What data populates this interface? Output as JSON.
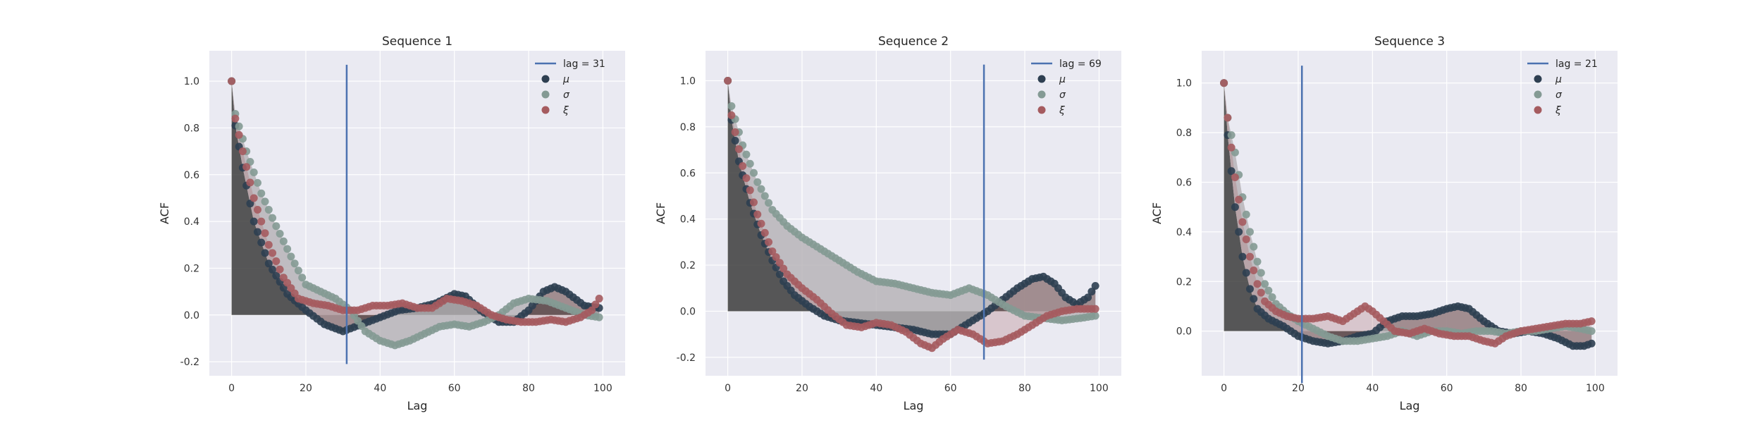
{
  "chart_data": [
    {
      "type": "scatter",
      "title": "Sequence 1",
      "xlabel": "Lag",
      "ylabel": "ACF",
      "xlim": [
        -6,
        106
      ],
      "ylim": [
        -0.26,
        1.13
      ],
      "xticks": [
        0,
        20,
        40,
        60,
        80,
        100
      ],
      "yticks": [
        -0.2,
        0.0,
        0.2,
        0.4,
        0.6,
        0.8,
        1.0
      ],
      "grid": true,
      "legend_position": "top-right",
      "vline": {
        "x": 31,
        "label": "lag = 31",
        "color": "#4c72b0"
      },
      "series": [
        {
          "name": "μ",
          "color": "#2e3f51",
          "knots": [
            [
              0,
              1.0
            ],
            [
              1,
              0.81
            ],
            [
              3,
              0.63
            ],
            [
              6,
              0.4
            ],
            [
              10,
              0.22
            ],
            [
              15,
              0.09
            ],
            [
              20,
              0.02
            ],
            [
              25,
              -0.04
            ],
            [
              30,
              -0.07
            ],
            [
              35,
              -0.04
            ],
            [
              40,
              -0.01
            ],
            [
              45,
              0.02
            ],
            [
              50,
              0.03
            ],
            [
              55,
              0.05
            ],
            [
              60,
              0.09
            ],
            [
              63,
              0.08
            ],
            [
              67,
              0.02
            ],
            [
              72,
              -0.03
            ],
            [
              76,
              -0.03
            ],
            [
              80,
              0.02
            ],
            [
              84,
              0.1
            ],
            [
              87,
              0.12
            ],
            [
              90,
              0.1
            ],
            [
              95,
              0.04
            ],
            [
              99,
              0.03
            ]
          ]
        },
        {
          "name": "σ",
          "color": "#849a94",
          "knots": [
            [
              0,
              1.0
            ],
            [
              1,
              0.86
            ],
            [
              4,
              0.7
            ],
            [
              8,
              0.52
            ],
            [
              12,
              0.38
            ],
            [
              16,
              0.25
            ],
            [
              20,
              0.13
            ],
            [
              24,
              0.1
            ],
            [
              28,
              0.07
            ],
            [
              32,
              0.02
            ],
            [
              36,
              -0.07
            ],
            [
              40,
              -0.11
            ],
            [
              44,
              -0.13
            ],
            [
              48,
              -0.11
            ],
            [
              52,
              -0.08
            ],
            [
              56,
              -0.05
            ],
            [
              60,
              -0.04
            ],
            [
              64,
              -0.05
            ],
            [
              68,
              -0.03
            ],
            [
              72,
              0.0
            ],
            [
              76,
              0.05
            ],
            [
              80,
              0.07
            ],
            [
              85,
              0.06
            ],
            [
              90,
              0.03
            ],
            [
              95,
              0.0
            ],
            [
              99,
              -0.01
            ]
          ]
        },
        {
          "name": "ξ",
          "color": "#a55b5f",
          "knots": [
            [
              0,
              1.0
            ],
            [
              1,
              0.84
            ],
            [
              3,
              0.7
            ],
            [
              6,
              0.5
            ],
            [
              10,
              0.3
            ],
            [
              14,
              0.16
            ],
            [
              18,
              0.07
            ],
            [
              22,
              0.05
            ],
            [
              26,
              0.04
            ],
            [
              30,
              0.02
            ],
            [
              34,
              0.02
            ],
            [
              38,
              0.04
            ],
            [
              42,
              0.04
            ],
            [
              46,
              0.05
            ],
            [
              50,
              0.03
            ],
            [
              54,
              0.03
            ],
            [
              58,
              0.07
            ],
            [
              62,
              0.06
            ],
            [
              66,
              0.04
            ],
            [
              70,
              0.0
            ],
            [
              74,
              -0.02
            ],
            [
              78,
              -0.03
            ],
            [
              82,
              -0.03
            ],
            [
              86,
              -0.02
            ],
            [
              90,
              -0.03
            ],
            [
              94,
              -0.01
            ],
            [
              97,
              0.02
            ],
            [
              99,
              0.07
            ]
          ]
        }
      ]
    },
    {
      "type": "scatter",
      "title": "Sequence 2",
      "xlabel": "Lag",
      "ylabel": "ACF",
      "xlim": [
        -6,
        106
      ],
      "ylim": [
        -0.28,
        1.13
      ],
      "xticks": [
        0,
        20,
        40,
        60,
        80,
        100
      ],
      "yticks": [
        -0.2,
        0.0,
        0.2,
        0.4,
        0.6,
        0.8,
        1.0
      ],
      "grid": true,
      "legend_position": "top-right",
      "vline": {
        "x": 69,
        "label": "lag = 69",
        "color": "#4c72b0"
      },
      "series": [
        {
          "name": "μ",
          "color": "#2e3f51",
          "knots": [
            [
              0,
              1.0
            ],
            [
              1,
              0.83
            ],
            [
              3,
              0.65
            ],
            [
              6,
              0.47
            ],
            [
              9,
              0.33
            ],
            [
              12,
              0.22
            ],
            [
              15,
              0.13
            ],
            [
              18,
              0.07
            ],
            [
              22,
              0.02
            ],
            [
              26,
              -0.02
            ],
            [
              30,
              -0.04
            ],
            [
              35,
              -0.05
            ],
            [
              40,
              -0.06
            ],
            [
              45,
              -0.07
            ],
            [
              50,
              -0.08
            ],
            [
              55,
              -0.1
            ],
            [
              60,
              -0.1
            ],
            [
              65,
              -0.05
            ],
            [
              70,
              0.0
            ],
            [
              74,
              0.05
            ],
            [
              78,
              0.1
            ],
            [
              82,
              0.14
            ],
            [
              85,
              0.15
            ],
            [
              88,
              0.12
            ],
            [
              91,
              0.06
            ],
            [
              94,
              0.03
            ],
            [
              97,
              0.06
            ],
            [
              99,
              0.11
            ]
          ]
        },
        {
          "name": "σ",
          "color": "#849a94",
          "knots": [
            [
              0,
              1.0
            ],
            [
              1,
              0.89
            ],
            [
              4,
              0.72
            ],
            [
              8,
              0.56
            ],
            [
              12,
              0.44
            ],
            [
              16,
              0.37
            ],
            [
              20,
              0.32
            ],
            [
              25,
              0.27
            ],
            [
              30,
              0.22
            ],
            [
              35,
              0.17
            ],
            [
              40,
              0.13
            ],
            [
              45,
              0.12
            ],
            [
              50,
              0.1
            ],
            [
              55,
              0.08
            ],
            [
              60,
              0.07
            ],
            [
              65,
              0.1
            ],
            [
              70,
              0.07
            ],
            [
              75,
              0.02
            ],
            [
              80,
              -0.02
            ],
            [
              85,
              -0.03
            ],
            [
              90,
              -0.04
            ],
            [
              95,
              -0.03
            ],
            [
              99,
              -0.02
            ]
          ]
        },
        {
          "name": "ξ",
          "color": "#a55b5f",
          "knots": [
            [
              0,
              1.0
            ],
            [
              1,
              0.85
            ],
            [
              4,
              0.63
            ],
            [
              8,
              0.42
            ],
            [
              12,
              0.26
            ],
            [
              16,
              0.16
            ],
            [
              20,
              0.1
            ],
            [
              24,
              0.05
            ],
            [
              28,
              -0.01
            ],
            [
              32,
              -0.06
            ],
            [
              36,
              -0.07
            ],
            [
              40,
              -0.05
            ],
            [
              44,
              -0.06
            ],
            [
              48,
              -0.09
            ],
            [
              52,
              -0.14
            ],
            [
              55,
              -0.16
            ],
            [
              58,
              -0.12
            ],
            [
              62,
              -0.08
            ],
            [
              66,
              -0.1
            ],
            [
              70,
              -0.14
            ],
            [
              74,
              -0.13
            ],
            [
              78,
              -0.1
            ],
            [
              82,
              -0.06
            ],
            [
              86,
              -0.02
            ],
            [
              90,
              0.0
            ],
            [
              94,
              0.01
            ],
            [
              99,
              0.01
            ]
          ]
        }
      ]
    },
    {
      "type": "scatter",
      "title": "Sequence 3",
      "xlabel": "Lag",
      "ylabel": "ACF",
      "xlim": [
        -6,
        106
      ],
      "ylim": [
        -0.18,
        1.13
      ],
      "xticks": [
        0,
        20,
        40,
        60,
        80,
        100
      ],
      "yticks": [
        0.0,
        0.2,
        0.4,
        0.6,
        0.8,
        1.0
      ],
      "grid": true,
      "legend_position": "top-right",
      "vline": {
        "x": 21,
        "label": "lag = 21",
        "color": "#4c72b0"
      },
      "series": [
        {
          "name": "μ",
          "color": "#2e3f51",
          "knots": [
            [
              0,
              1.0
            ],
            [
              1,
              0.79
            ],
            [
              3,
              0.5
            ],
            [
              5,
              0.3
            ],
            [
              7,
              0.17
            ],
            [
              9,
              0.09
            ],
            [
              12,
              0.05
            ],
            [
              16,
              0.02
            ],
            [
              20,
              -0.02
            ],
            [
              24,
              -0.04
            ],
            [
              28,
              -0.05
            ],
            [
              32,
              -0.04
            ],
            [
              36,
              -0.02
            ],
            [
              40,
              -0.01
            ],
            [
              44,
              0.04
            ],
            [
              48,
              0.06
            ],
            [
              52,
              0.06
            ],
            [
              56,
              0.07
            ],
            [
              60,
              0.09
            ],
            [
              63,
              0.1
            ],
            [
              66,
              0.09
            ],
            [
              70,
              0.04
            ],
            [
              74,
              0.0
            ],
            [
              78,
              -0.01
            ],
            [
              82,
              0.0
            ],
            [
              86,
              -0.01
            ],
            [
              90,
              -0.03
            ],
            [
              94,
              -0.06
            ],
            [
              97,
              -0.06
            ],
            [
              99,
              -0.05
            ]
          ]
        },
        {
          "name": "σ",
          "color": "#849a94",
          "knots": [
            [
              0,
              1.0
            ],
            [
              1,
              0.86
            ],
            [
              3,
              0.72
            ],
            [
              5,
              0.54
            ],
            [
              7,
              0.4
            ],
            [
              9,
              0.28
            ],
            [
              11,
              0.19
            ],
            [
              14,
              0.11
            ],
            [
              17,
              0.07
            ],
            [
              20,
              0.04
            ],
            [
              24,
              0.01
            ],
            [
              28,
              -0.02
            ],
            [
              32,
              -0.04
            ],
            [
              36,
              -0.04
            ],
            [
              40,
              -0.03
            ],
            [
              44,
              -0.02
            ],
            [
              48,
              0.0
            ],
            [
              52,
              -0.02
            ],
            [
              56,
              0.0
            ],
            [
              60,
              0.0
            ],
            [
              64,
              -0.01
            ],
            [
              68,
              0.0
            ],
            [
              72,
              0.0
            ],
            [
              76,
              -0.01
            ],
            [
              80,
              0.0
            ],
            [
              84,
              0.0
            ],
            [
              88,
              0.01
            ],
            [
              92,
              0.02
            ],
            [
              96,
              0.01
            ],
            [
              99,
              0.0
            ]
          ]
        },
        {
          "name": "ξ",
          "color": "#a55b5f",
          "knots": [
            [
              0,
              1.0
            ],
            [
              1,
              0.86
            ],
            [
              3,
              0.62
            ],
            [
              5,
              0.44
            ],
            [
              7,
              0.3
            ],
            [
              9,
              0.19
            ],
            [
              11,
              0.12
            ],
            [
              14,
              0.08
            ],
            [
              17,
              0.06
            ],
            [
              20,
              0.05
            ],
            [
              24,
              0.05
            ],
            [
              28,
              0.06
            ],
            [
              32,
              0.04
            ],
            [
              35,
              0.07
            ],
            [
              38,
              0.1
            ],
            [
              40,
              0.08
            ],
            [
              43,
              0.04
            ],
            [
              46,
              0.0
            ],
            [
              50,
              -0.01
            ],
            [
              54,
              0.01
            ],
            [
              58,
              -0.01
            ],
            [
              62,
              -0.02
            ],
            [
              66,
              -0.02
            ],
            [
              70,
              -0.04
            ],
            [
              73,
              -0.05
            ],
            [
              76,
              -0.02
            ],
            [
              80,
              0.0
            ],
            [
              84,
              0.01
            ],
            [
              88,
              0.02
            ],
            [
              92,
              0.03
            ],
            [
              96,
              0.03
            ],
            [
              99,
              0.04
            ]
          ]
        }
      ]
    }
  ]
}
